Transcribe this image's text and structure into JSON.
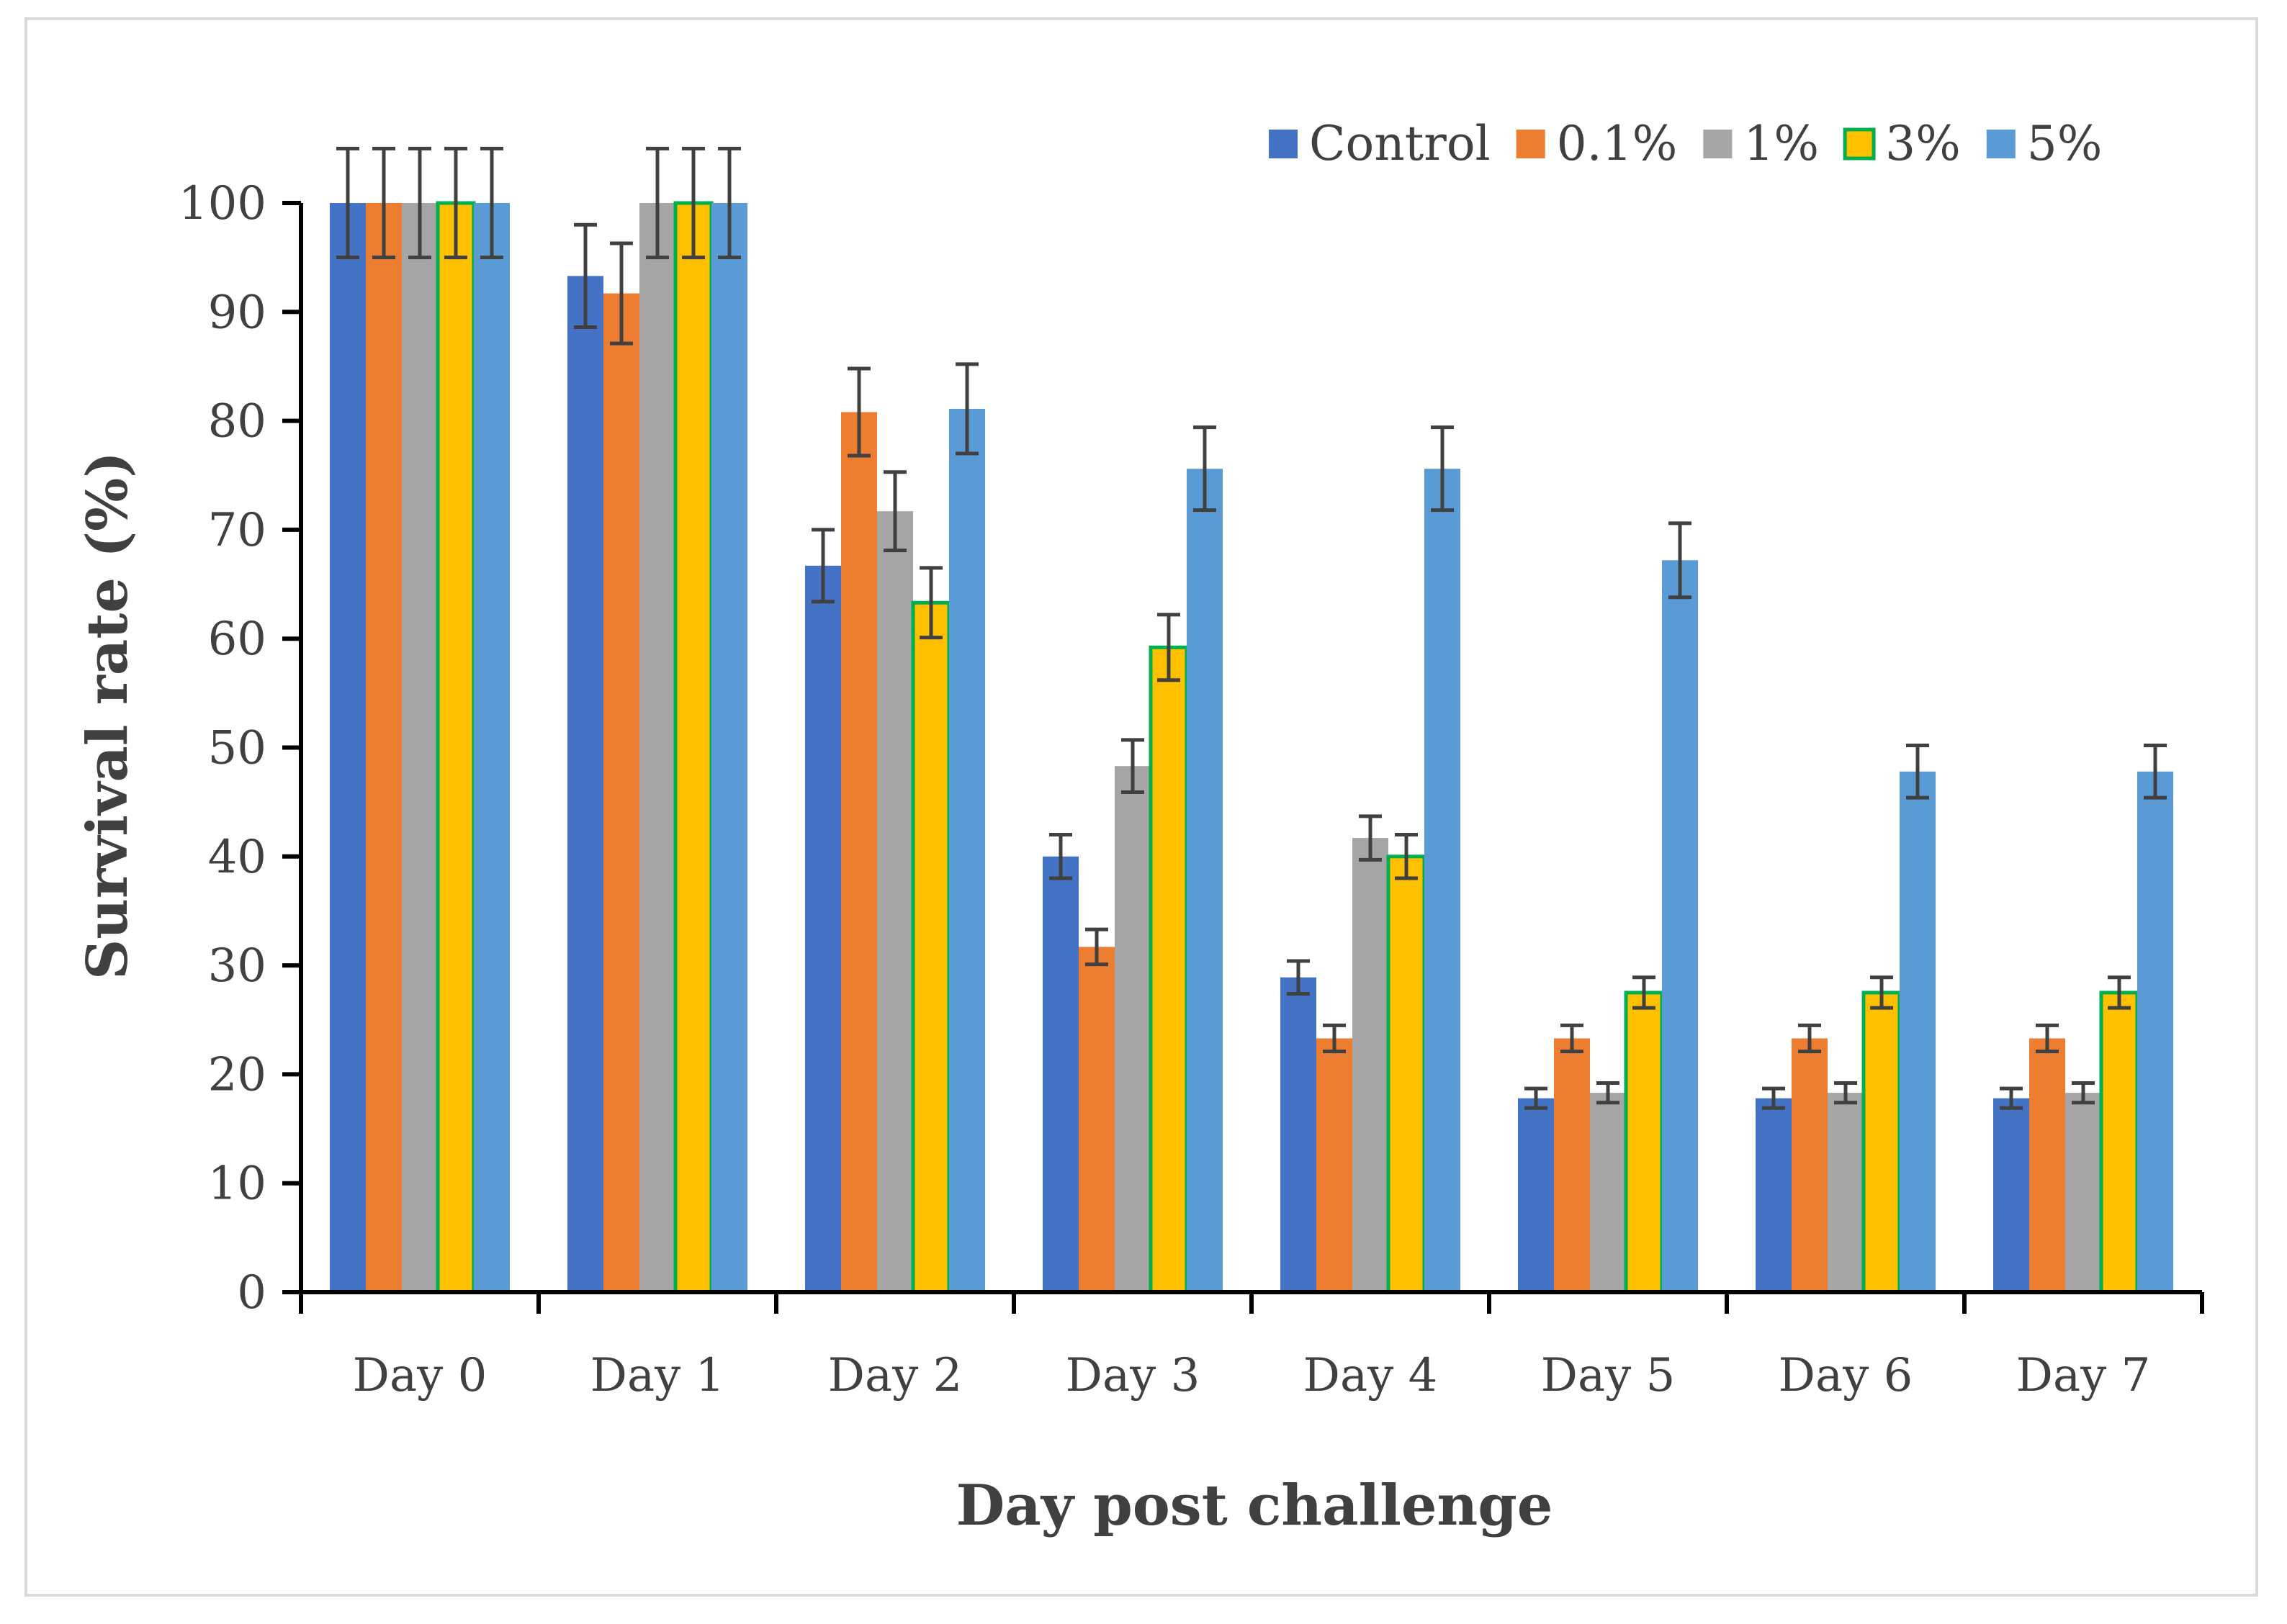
{
  "chart_data": {
    "type": "bar",
    "title": "",
    "xlabel": "Day post challenge",
    "ylabel": "Survival rate (%)",
    "ylim": [
      0,
      100
    ],
    "yticks": [
      0,
      10,
      20,
      30,
      40,
      50,
      60,
      70,
      80,
      90,
      100
    ],
    "grid": false,
    "legend_position": "top-right",
    "categories": [
      "Day 0",
      "Day 1",
      "Day 2",
      "Day 3",
      "Day 4",
      "Day 5",
      "Day 6",
      "Day 7"
    ],
    "series": [
      {
        "name": "Control",
        "color": "#4472c4",
        "stroke": "none",
        "values": [
          100,
          93.3,
          66.7,
          40.0,
          28.9,
          17.8,
          17.8,
          17.8
        ],
        "errors": [
          5.0,
          4.7,
          3.3,
          2.0,
          1.5,
          0.9,
          0.9,
          0.9
        ]
      },
      {
        "name": "0.1%",
        "color": "#ed7d31",
        "stroke": "none",
        "values": [
          100,
          91.7,
          80.8,
          31.7,
          23.3,
          23.3,
          23.3,
          23.3
        ],
        "errors": [
          5.0,
          4.6,
          4.0,
          1.6,
          1.2,
          1.2,
          1.2,
          1.2
        ]
      },
      {
        "name": "1%",
        "color": "#a5a5a5",
        "stroke": "none",
        "values": [
          100,
          100,
          71.7,
          48.3,
          41.7,
          18.3,
          18.3,
          18.3
        ],
        "errors": [
          5.0,
          5.0,
          3.6,
          2.4,
          2.0,
          0.9,
          0.9,
          0.9
        ]
      },
      {
        "name": "3%",
        "color": "#ffc000",
        "stroke": "#00b050",
        "values": [
          100,
          100,
          63.3,
          59.2,
          40.0,
          27.5,
          27.5,
          27.5
        ],
        "errors": [
          5.0,
          5.0,
          3.2,
          3.0,
          2.0,
          1.4,
          1.4,
          1.4
        ]
      },
      {
        "name": "5%",
        "color": "#5b9bd5",
        "stroke": "none",
        "values": [
          100,
          100,
          81.1,
          75.6,
          75.6,
          67.2,
          47.8,
          47.8
        ],
        "errors": [
          5.0,
          5.0,
          4.1,
          3.8,
          3.8,
          3.4,
          2.4,
          2.4
        ]
      }
    ]
  }
}
